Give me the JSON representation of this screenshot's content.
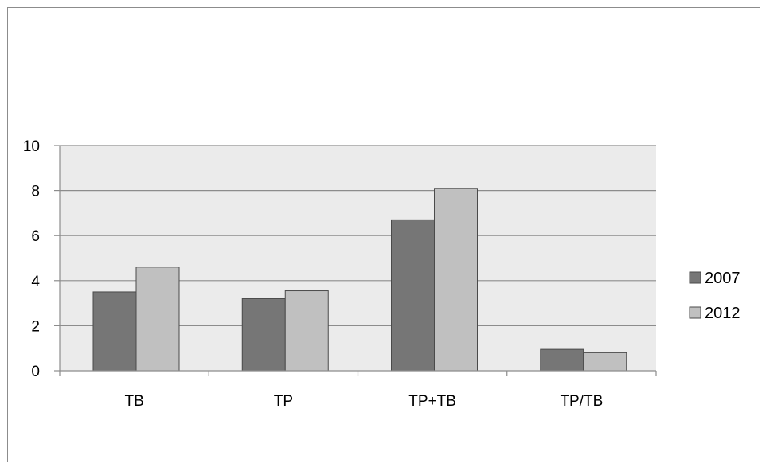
{
  "chart_data": {
    "type": "bar",
    "categories": [
      "TB",
      "TP",
      "TP+TB",
      "TP/TB"
    ],
    "series": [
      {
        "name": "2007",
        "values": [
          3.5,
          3.2,
          6.7,
          0.95
        ],
        "color": "#767676"
      },
      {
        "name": "2012",
        "values": [
          4.6,
          3.55,
          8.1,
          0.8
        ],
        "color": "#c0c0c0"
      }
    ],
    "ylim": [
      0,
      10
    ],
    "yticks": [
      0,
      2,
      4,
      6,
      8,
      10
    ],
    "grid": true,
    "plot_background": "#ebebeb",
    "legend_position": "right",
    "title": "",
    "xlabel": "",
    "ylabel": ""
  }
}
